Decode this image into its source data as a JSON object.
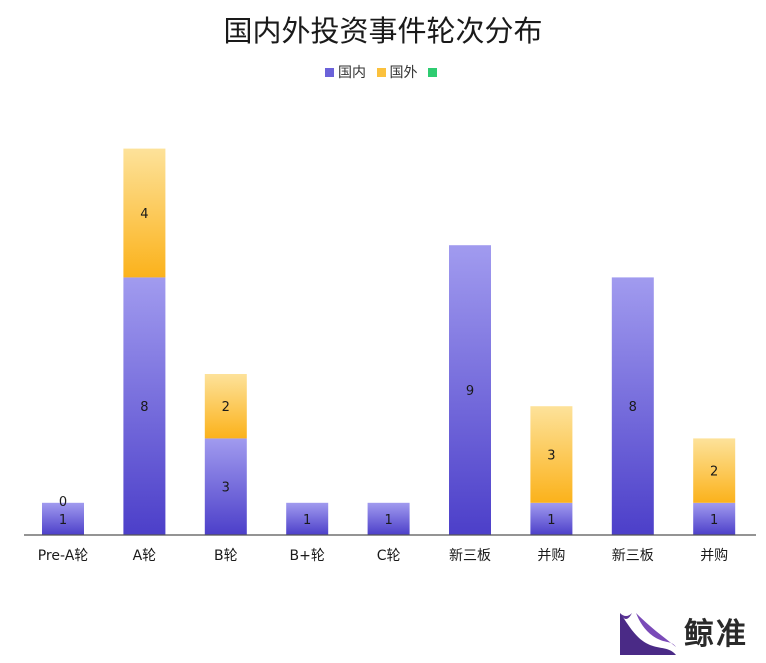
{
  "chart_data": {
    "type": "bar",
    "stacked": true,
    "title": "国内外投资事件轮次分布",
    "categories": [
      "Pre-A轮",
      "A轮",
      "B轮",
      "B+轮",
      "C轮",
      "新三板",
      "并购",
      "新三板",
      "并购"
    ],
    "series": [
      {
        "name": "国内",
        "color": "#6b62d9",
        "values": [
          1,
          8,
          3,
          1,
          1,
          9,
          1,
          8,
          1
        ]
      },
      {
        "name": "国外",
        "color": "#fbc13d",
        "values": [
          0,
          4,
          2,
          null,
          null,
          null,
          3,
          null,
          2
        ]
      },
      {
        "name": "",
        "color": "#2ecc71",
        "values": [
          null,
          null,
          null,
          null,
          null,
          null,
          null,
          null,
          null
        ]
      }
    ],
    "legend_position": "top",
    "grid": false
  },
  "logo": {
    "text": "鲸准"
  }
}
